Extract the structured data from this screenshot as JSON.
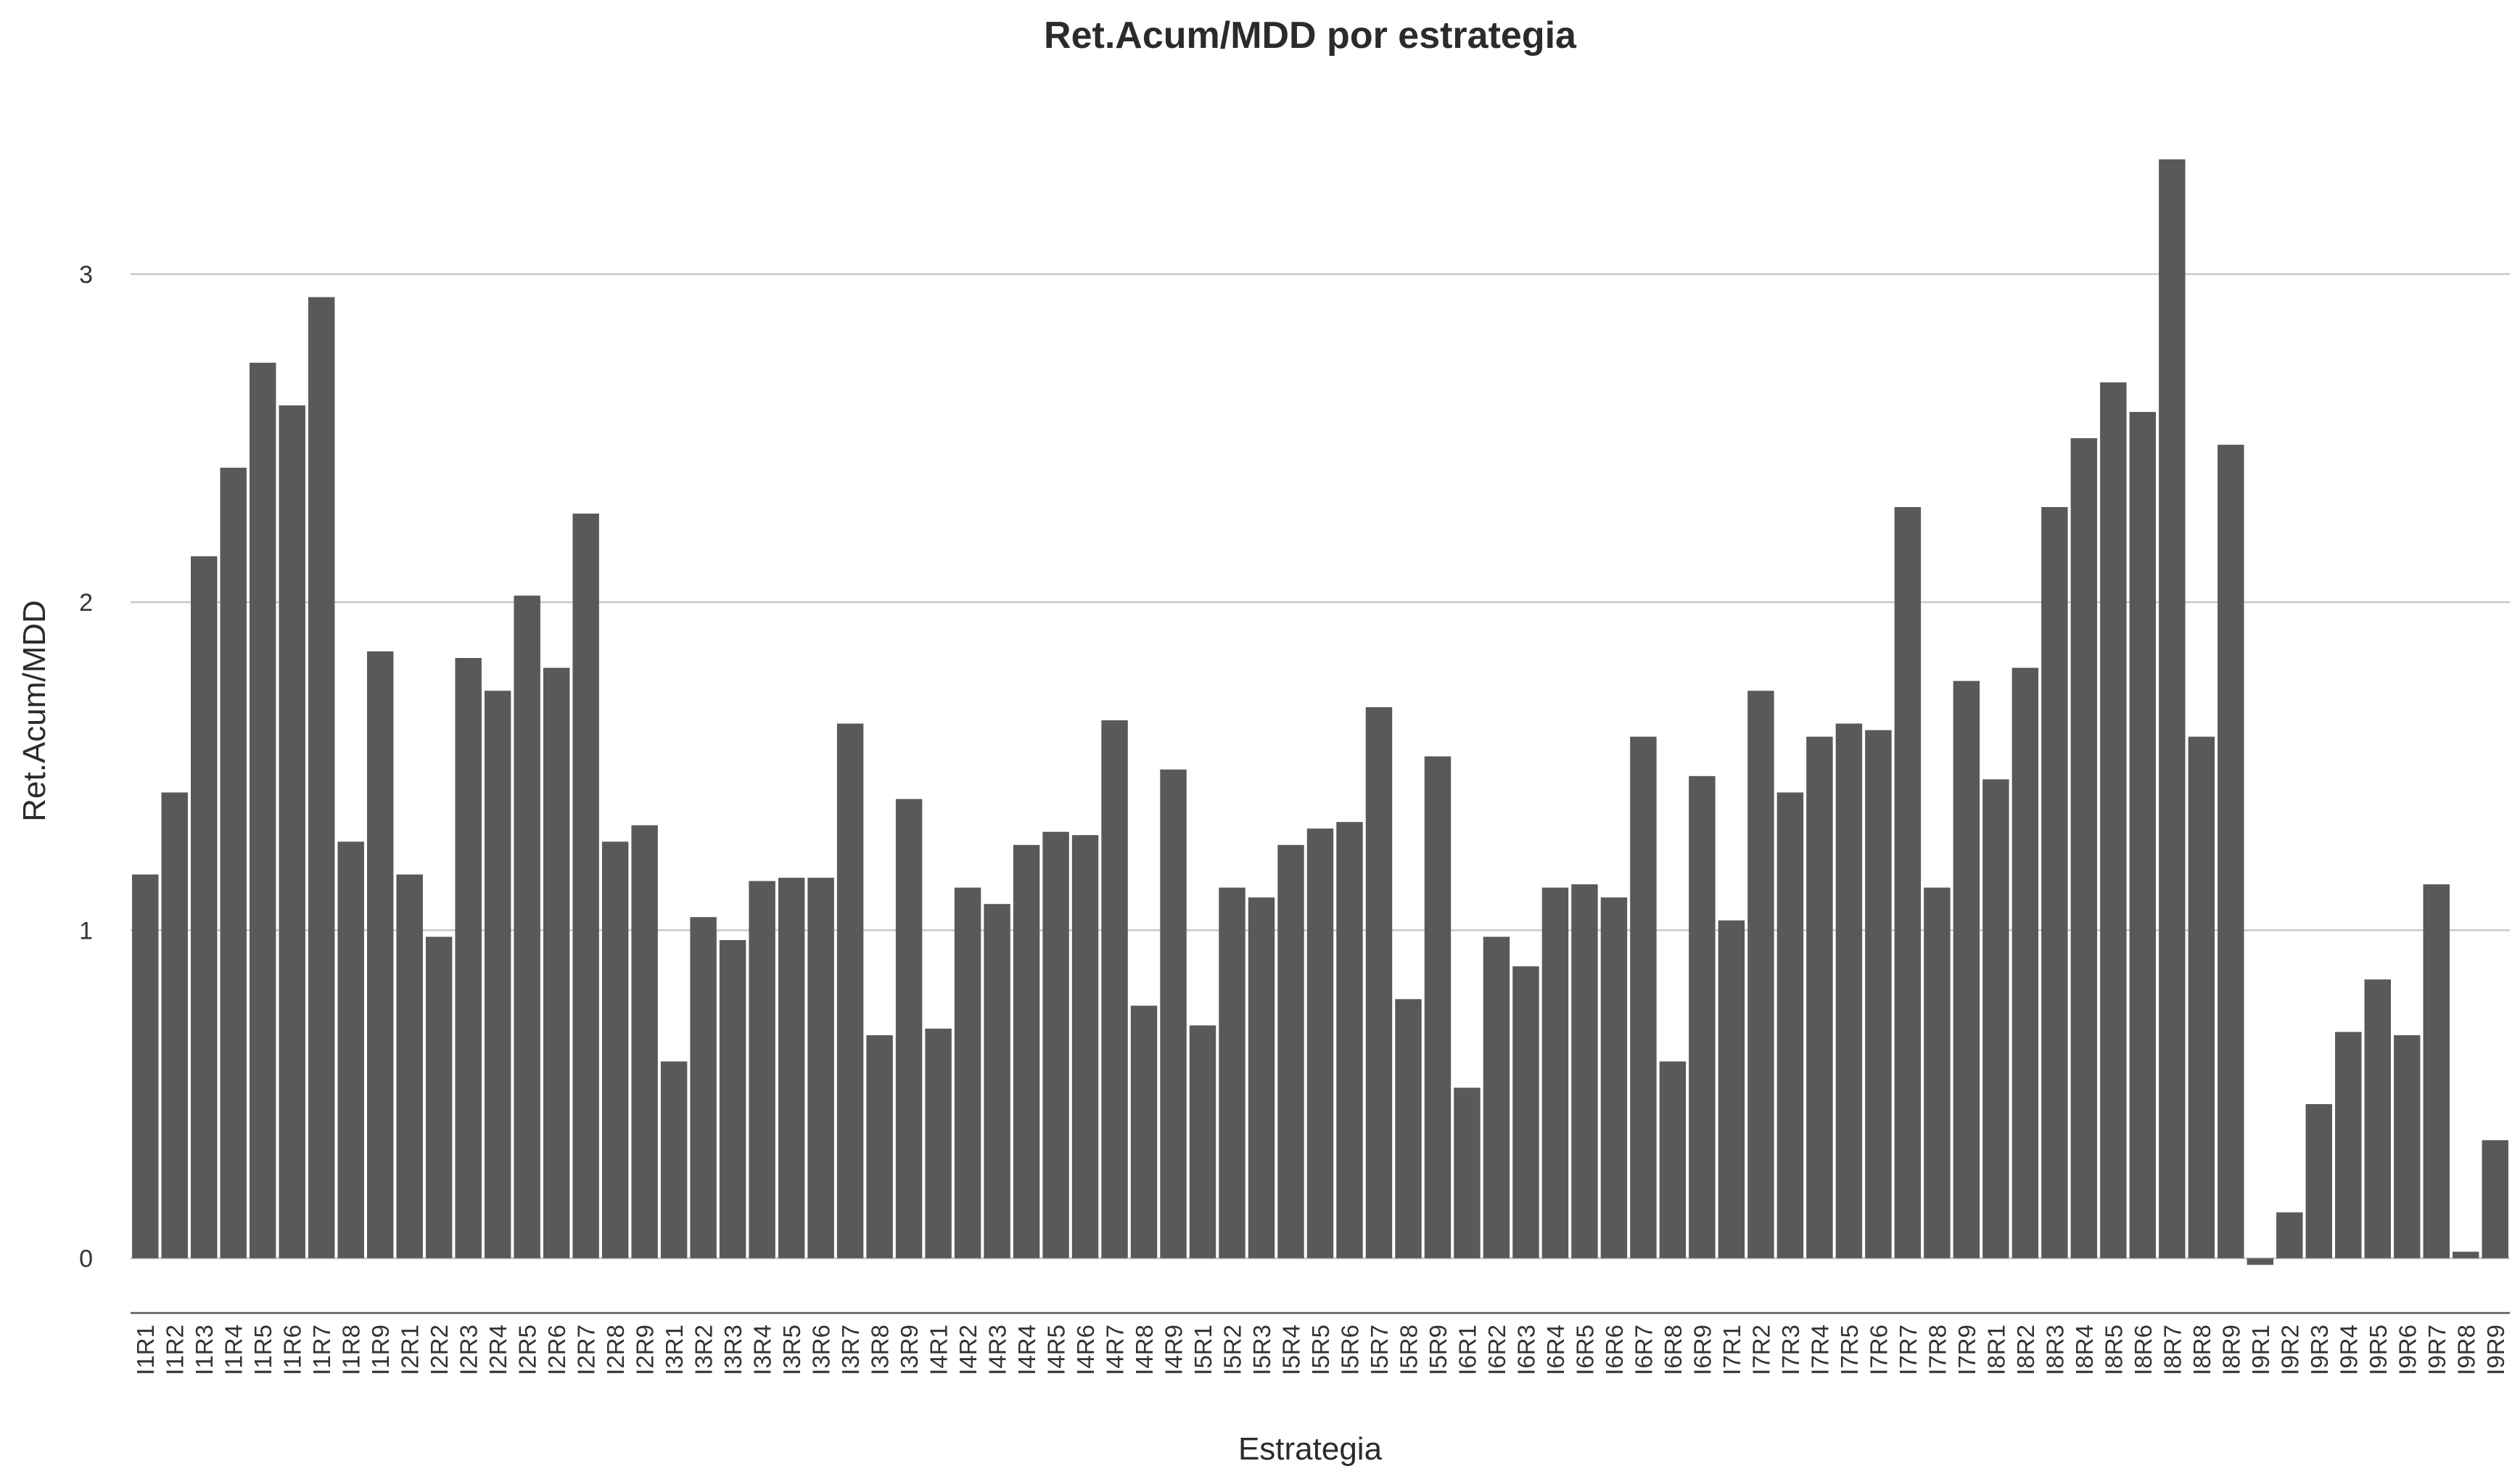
{
  "chart_data": {
    "type": "bar",
    "title": "Ret.Acum/MDD por estrategia",
    "xlabel": "Estrategia",
    "ylabel": "Ret.Acum/MDD",
    "ylim": [
      -0.18,
      3.42
    ],
    "yticks": [
      0,
      1,
      2,
      3
    ],
    "grid": "horizontal",
    "bar_color": "#595959",
    "categories": [
      "I1R1",
      "I1R2",
      "I1R3",
      "I1R4",
      "I1R5",
      "I1R6",
      "I1R7",
      "I1R8",
      "I1R9",
      "I2R1",
      "I2R2",
      "I2R3",
      "I2R4",
      "I2R5",
      "I2R6",
      "I2R7",
      "I2R8",
      "I2R9",
      "I3R1",
      "I3R2",
      "I3R3",
      "I3R4",
      "I3R5",
      "I3R6",
      "I3R7",
      "I3R8",
      "I3R9",
      "I4R1",
      "I4R2",
      "I4R3",
      "I4R4",
      "I4R5",
      "I4R6",
      "I4R7",
      "I4R8",
      "I4R9",
      "I5R1",
      "I5R2",
      "I5R3",
      "I5R4",
      "I5R5",
      "I5R6",
      "I5R7",
      "I5R8",
      "I5R9",
      "I6R1",
      "I6R2",
      "I6R3",
      "I6R4",
      "I6R5",
      "I6R6",
      "I6R7",
      "I6R8",
      "I6R9",
      "I7R1",
      "I7R2",
      "I7R3",
      "I7R4",
      "I7R5",
      "I7R6",
      "I7R7",
      "I7R8",
      "I7R9",
      "I8R1",
      "I8R2",
      "I8R3",
      "I8R4",
      "I8R5",
      "I8R6",
      "I8R7",
      "I8R8",
      "I8R9",
      "I9R1",
      "I9R2",
      "I9R3",
      "I9R4",
      "I9R5",
      "I9R6",
      "I9R7",
      "I9R8",
      "I9R9"
    ],
    "values": [
      1.17,
      1.42,
      2.14,
      2.41,
      2.73,
      2.6,
      2.93,
      1.27,
      1.85,
      1.17,
      0.98,
      1.83,
      1.73,
      2.02,
      1.8,
      2.27,
      1.27,
      1.32,
      0.6,
      1.04,
      0.97,
      1.15,
      1.16,
      1.16,
      1.63,
      0.68,
      1.4,
      0.7,
      1.13,
      1.08,
      1.26,
      1.3,
      1.29,
      1.64,
      0.77,
      1.49,
      0.71,
      1.13,
      1.1,
      1.26,
      1.31,
      1.33,
      1.68,
      0.79,
      1.53,
      0.52,
      0.98,
      0.89,
      1.13,
      1.14,
      1.1,
      1.59,
      0.6,
      1.47,
      1.03,
      1.73,
      1.42,
      1.59,
      1.63,
      1.61,
      2.29,
      1.13,
      1.76,
      1.46,
      1.8,
      2.29,
      2.5,
      2.67,
      2.58,
      3.35,
      1.59,
      2.48,
      -0.02,
      0.14,
      0.47,
      0.69,
      0.85,
      0.68,
      1.14,
      0.02,
      0.36
    ]
  }
}
